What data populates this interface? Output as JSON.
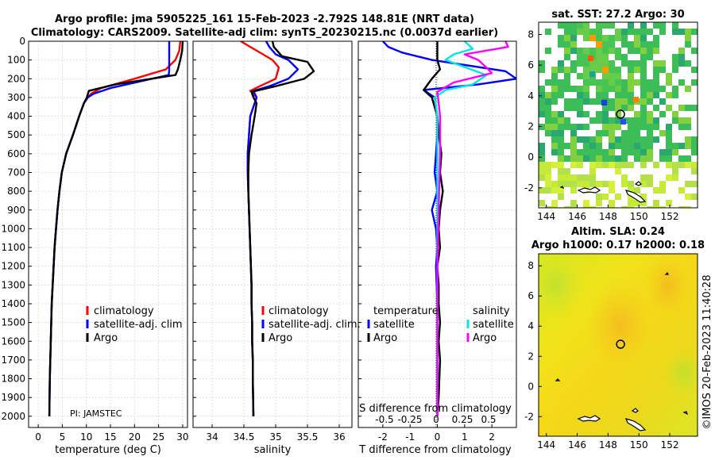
{
  "figure": {
    "title_line1": "Argo profile: jma 5905225_161 15-Feb-2023 -2.792S 148.81E (NRT data)",
    "title_line2": "Climatology: CARS2009. Satellite-adj clim: synTS_20230215.nc (0.0037d earlier)",
    "pi_label": "PI: JAMSTEC",
    "credit": "©IMOS 20-Feb-2023 11:40:28"
  },
  "colors": {
    "climatology": "#ff0000",
    "satellite_adj": "#0000ff",
    "argo": "#000000",
    "sat_T": "#00ccff",
    "sat_S": "#00e5e5",
    "argo_S": "#ff00ff"
  },
  "chart_data": [
    {
      "id": "temperature",
      "type": "line",
      "xlabel": "temperature (deg C)",
      "ylabel": "depth",
      "xlim": [
        -2,
        31
      ],
      "ylim": [
        2060,
        0
      ],
      "xticks": [
        0,
        5,
        10,
        15,
        20,
        25,
        30
      ],
      "yticks": [
        0,
        100,
        200,
        300,
        400,
        500,
        600,
        700,
        800,
        900,
        1000,
        1100,
        1200,
        1300,
        1400,
        1500,
        1600,
        1700,
        1800,
        1900,
        2000
      ],
      "legend": [
        "climatology",
        "satellite-adj. clim",
        "Argo"
      ],
      "legend_position": "lower-right",
      "series": [
        {
          "name": "climatology",
          "color": "#ff0000",
          "x": [
            29.5,
            29.3,
            28.5,
            26.5,
            20,
            13,
            11,
            10.3,
            9.5,
            8.5,
            7.2,
            5.8,
            4.9,
            4.4,
            4.0,
            3.7,
            3.4,
            3.2,
            3.0,
            2.8,
            2.7,
            2.6,
            2.5,
            2.4,
            2.35,
            2.3
          ],
          "y": [
            0,
            50,
            100,
            150,
            200,
            250,
            280,
            300,
            330,
            400,
            500,
            600,
            700,
            800,
            900,
            1000,
            1100,
            1200,
            1300,
            1400,
            1500,
            1600,
            1700,
            1800,
            1900,
            2000
          ]
        },
        {
          "name": "satellite-adj. clim",
          "color": "#0000ff",
          "x": [
            27.2,
            27.2,
            27.2,
            27.2,
            27.1,
            15,
            11.5,
            10.3,
            9.5,
            8.5,
            7.2,
            5.8,
            4.9,
            4.4,
            4.0,
            3.7,
            3.4,
            3.2,
            3.0,
            2.8,
            2.7,
            2.6,
            2.5,
            2.4,
            2.35,
            2.3
          ],
          "y": [
            0,
            50,
            100,
            150,
            180,
            250,
            280,
            300,
            330,
            400,
            500,
            600,
            700,
            800,
            900,
            1000,
            1100,
            1200,
            1300,
            1400,
            1500,
            1600,
            1700,
            1800,
            1900,
            2000
          ]
        },
        {
          "name": "Argo",
          "color": "#000000",
          "x": [
            30.0,
            29.9,
            29.5,
            29.0,
            28.5,
            16,
            10.5,
            10.1,
            9.5,
            8.5,
            7.2,
            5.8,
            4.9,
            4.4,
            4.0,
            3.7,
            3.4,
            3.2,
            3.0,
            2.8,
            2.7,
            2.6,
            2.5,
            2.4,
            2.35,
            2.3
          ],
          "y": [
            0,
            50,
            100,
            150,
            180,
            230,
            265,
            300,
            330,
            400,
            500,
            600,
            700,
            800,
            900,
            1000,
            1100,
            1200,
            1300,
            1400,
            1500,
            1600,
            1700,
            1800,
            1900,
            2000
          ]
        }
      ]
    },
    {
      "id": "salinity",
      "type": "line",
      "xlabel": "salinity",
      "xlim": [
        33.7,
        36.2
      ],
      "ylim": [
        2060,
        0
      ],
      "xticks": [
        34,
        34.5,
        35,
        35.5,
        36
      ],
      "legend": [
        "climatology",
        "satellite-adj. clim.",
        "Argo"
      ],
      "legend_position": "lower-right",
      "series": [
        {
          "name": "climatology",
          "color": "#ff0000",
          "x": [
            34.45,
            34.6,
            34.8,
            34.95,
            35.05,
            35.0,
            34.75,
            34.6,
            34.7,
            34.67,
            34.6,
            34.58,
            34.56,
            34.56,
            34.57,
            34.58,
            34.59,
            34.6,
            34.61,
            34.62,
            34.62,
            34.63,
            34.63,
            34.64,
            34.64,
            34.65
          ],
          "y": [
            0,
            30,
            70,
            100,
            140,
            200,
            240,
            265,
            300,
            330,
            400,
            500,
            600,
            700,
            800,
            900,
            1000,
            1100,
            1200,
            1300,
            1400,
            1500,
            1600,
            1700,
            1800,
            2000
          ]
        },
        {
          "name": "satellite-adj. clim.",
          "color": "#0000ff",
          "x": [
            34.85,
            34.9,
            35.0,
            35.2,
            35.35,
            35.2,
            34.9,
            34.65,
            34.7,
            34.67,
            34.6,
            34.58,
            34.56,
            34.56,
            34.57,
            34.58,
            34.59,
            34.6,
            34.61,
            34.62,
            34.62,
            34.63,
            34.63,
            34.64,
            34.64,
            34.65
          ],
          "y": [
            0,
            30,
            70,
            100,
            150,
            200,
            240,
            265,
            300,
            330,
            400,
            500,
            600,
            700,
            800,
            900,
            1000,
            1100,
            1200,
            1300,
            1400,
            1500,
            1600,
            1700,
            1800,
            2000
          ]
        },
        {
          "name": "Argo",
          "color": "#000000",
          "x": [
            34.95,
            34.97,
            35.1,
            35.5,
            35.6,
            35.45,
            35.0,
            34.62,
            34.65,
            34.7,
            34.67,
            34.62,
            34.58,
            34.57,
            34.57,
            34.58,
            34.59,
            34.6,
            34.61,
            34.62,
            34.62,
            34.63,
            34.63,
            34.64,
            34.64,
            34.65
          ],
          "y": [
            0,
            30,
            80,
            110,
            160,
            200,
            240,
            270,
            300,
            330,
            400,
            500,
            600,
            700,
            800,
            900,
            1000,
            1100,
            1200,
            1300,
            1400,
            1500,
            1600,
            1700,
            1800,
            2000
          ]
        }
      ]
    },
    {
      "id": "difference",
      "type": "line",
      "xlabel": "T difference from climatology",
      "top_axis_label": "S difference from climatology",
      "xlim": [
        -2.9,
        2.9
      ],
      "ylim": [
        2060,
        0
      ],
      "xticks": [
        -2,
        -1,
        0,
        1,
        2
      ],
      "top_xticks": [
        "-0.5",
        "-0.25",
        "0",
        "0.25",
        "0.5"
      ],
      "legend_left_header": "temperature",
      "legend_right_header": "salinity",
      "legend_left": [
        "satellite",
        "Argo"
      ],
      "legend_right": [
        "satellite",
        "Argo"
      ],
      "series": [
        {
          "name": "temperature satellite",
          "color": "#0000ff",
          "x": [
            -2.0,
            -1.8,
            -1.3,
            -0.2,
            2.5,
            2.9,
            1.5,
            -0.5,
            -0.1,
            0.0,
            0.0,
            -0.05,
            -0.1,
            0.0,
            -0.2,
            -0.05,
            0.0,
            -0.05,
            0.0,
            0.0,
            0.0,
            0.0,
            0.0
          ],
          "y": [
            0,
            30,
            60,
            100,
            160,
            200,
            230,
            260,
            300,
            400,
            500,
            600,
            700,
            800,
            900,
            1000,
            1100,
            1200,
            1400,
            1600,
            1800,
            1900,
            2000
          ]
        },
        {
          "name": "temperature Argo",
          "color": "#000000",
          "x": [
            0.0,
            0.0,
            0.0,
            0.1,
            -0.2,
            -0.5,
            -0.2,
            0.0,
            0.05,
            0.15,
            0.1,
            0.2,
            0.1,
            0.05,
            0.1,
            0.0,
            0.05,
            0.05,
            0.1,
            0.05,
            0.1,
            0.05,
            0.0
          ],
          "y": [
            0,
            50,
            100,
            150,
            200,
            260,
            300,
            400,
            500,
            600,
            700,
            800,
            900,
            1000,
            1100,
            1200,
            1300,
            1400,
            1500,
            1600,
            1700,
            1900,
            2000
          ]
        },
        {
          "name": "salinity satellite",
          "color": "#00e5e5",
          "x": [
            1.0,
            1.3,
            0.6,
            0.3,
            1.8,
            1.3,
            0.3,
            -0.1,
            0.0,
            0.0,
            0.0,
            0.0,
            0.0,
            0.0,
            0.0
          ],
          "y": [
            0,
            40,
            70,
            100,
            180,
            230,
            260,
            300,
            400,
            600,
            800,
            1000,
            1400,
            1800,
            2000
          ]
        },
        {
          "name": "salinity Argo",
          "color": "#ff00ff",
          "x": [
            2.5,
            2.6,
            1.0,
            1.5,
            1.8,
            2.0,
            0.6,
            0.0,
            0.05,
            0.1,
            0.1,
            0.05,
            0.0,
            0.0,
            0.0
          ],
          "y": [
            0,
            30,
            70,
            100,
            140,
            170,
            220,
            270,
            330,
            400,
            600,
            900,
            1200,
            1600,
            2000
          ]
        }
      ]
    }
  ],
  "maps": {
    "sst": {
      "title": "sat. SST: 27.2 Argo: 30",
      "xticks": [
        144,
        146,
        148,
        150,
        152
      ],
      "yticks": [
        8,
        6,
        4,
        2,
        0,
        -2
      ],
      "xlim": [
        143.5,
        153.8
      ],
      "ylim": [
        -3.3,
        8.8
      ],
      "marker": {
        "lon": 148.81,
        "lat": 2.8
      }
    },
    "sla": {
      "title_line1": "Altim. SLA: 0.24",
      "title_line2": "Argo h1000: 0.17 h2000: 0.18",
      "xticks": [
        144,
        146,
        148,
        150,
        152
      ],
      "yticks": [
        8,
        6,
        4,
        2,
        0,
        -2
      ],
      "xlim": [
        143.5,
        153.8
      ],
      "ylim": [
        -3.3,
        8.8
      ],
      "marker": {
        "lon": 148.81,
        "lat": 2.8
      }
    }
  }
}
